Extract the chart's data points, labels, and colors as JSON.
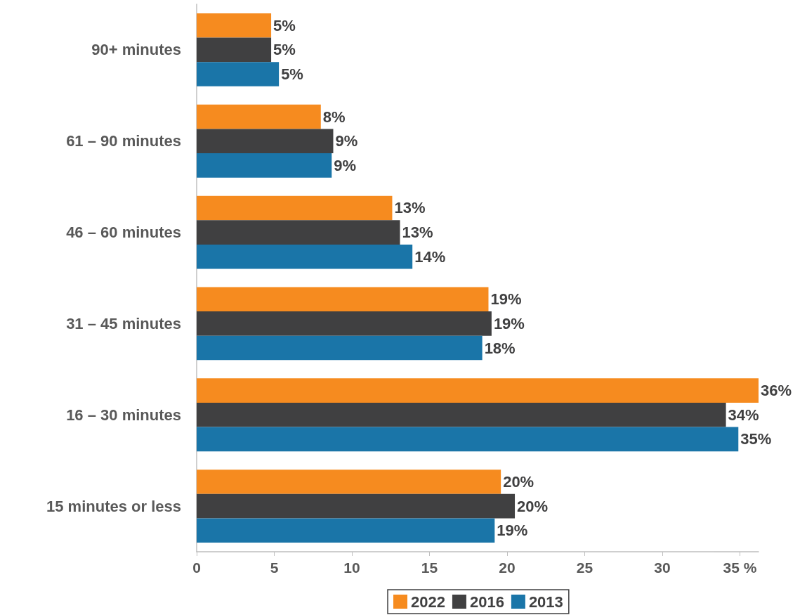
{
  "chart_data": {
    "type": "bar",
    "orientation": "horizontal",
    "categories": [
      "90+ minutes",
      "61 – 90 minutes",
      "46 – 60 minutes",
      "31 – 45 minutes",
      "16 – 30 minutes",
      "15 minutes or less"
    ],
    "series": [
      {
        "name": "2022",
        "color": "#f68b1f",
        "values": [
          4.8,
          8.0,
          12.6,
          18.8,
          36.2,
          19.6
        ],
        "value_labels": [
          "5%",
          "8%",
          "13%",
          "19%",
          "36%",
          "20%"
        ]
      },
      {
        "name": "2016",
        "color": "#404041",
        "values": [
          4.8,
          8.8,
          13.1,
          19.0,
          34.1,
          20.5
        ],
        "value_labels": [
          "5%",
          "9%",
          "13%",
          "19%",
          "34%",
          "20%"
        ]
      },
      {
        "name": "2013",
        "color": "#1a75a8",
        "values": [
          5.3,
          8.7,
          13.9,
          18.4,
          34.9,
          19.2
        ],
        "value_labels": [
          "5%",
          "9%",
          "14%",
          "18%",
          "35%",
          "19%"
        ]
      }
    ],
    "xlim": [
      0,
      36.2
    ],
    "xticks": [
      0,
      5,
      10,
      15,
      20,
      25,
      30,
      {
        "value": 35,
        "label": "35 %"
      }
    ],
    "grid": false,
    "legend": "bottom"
  }
}
